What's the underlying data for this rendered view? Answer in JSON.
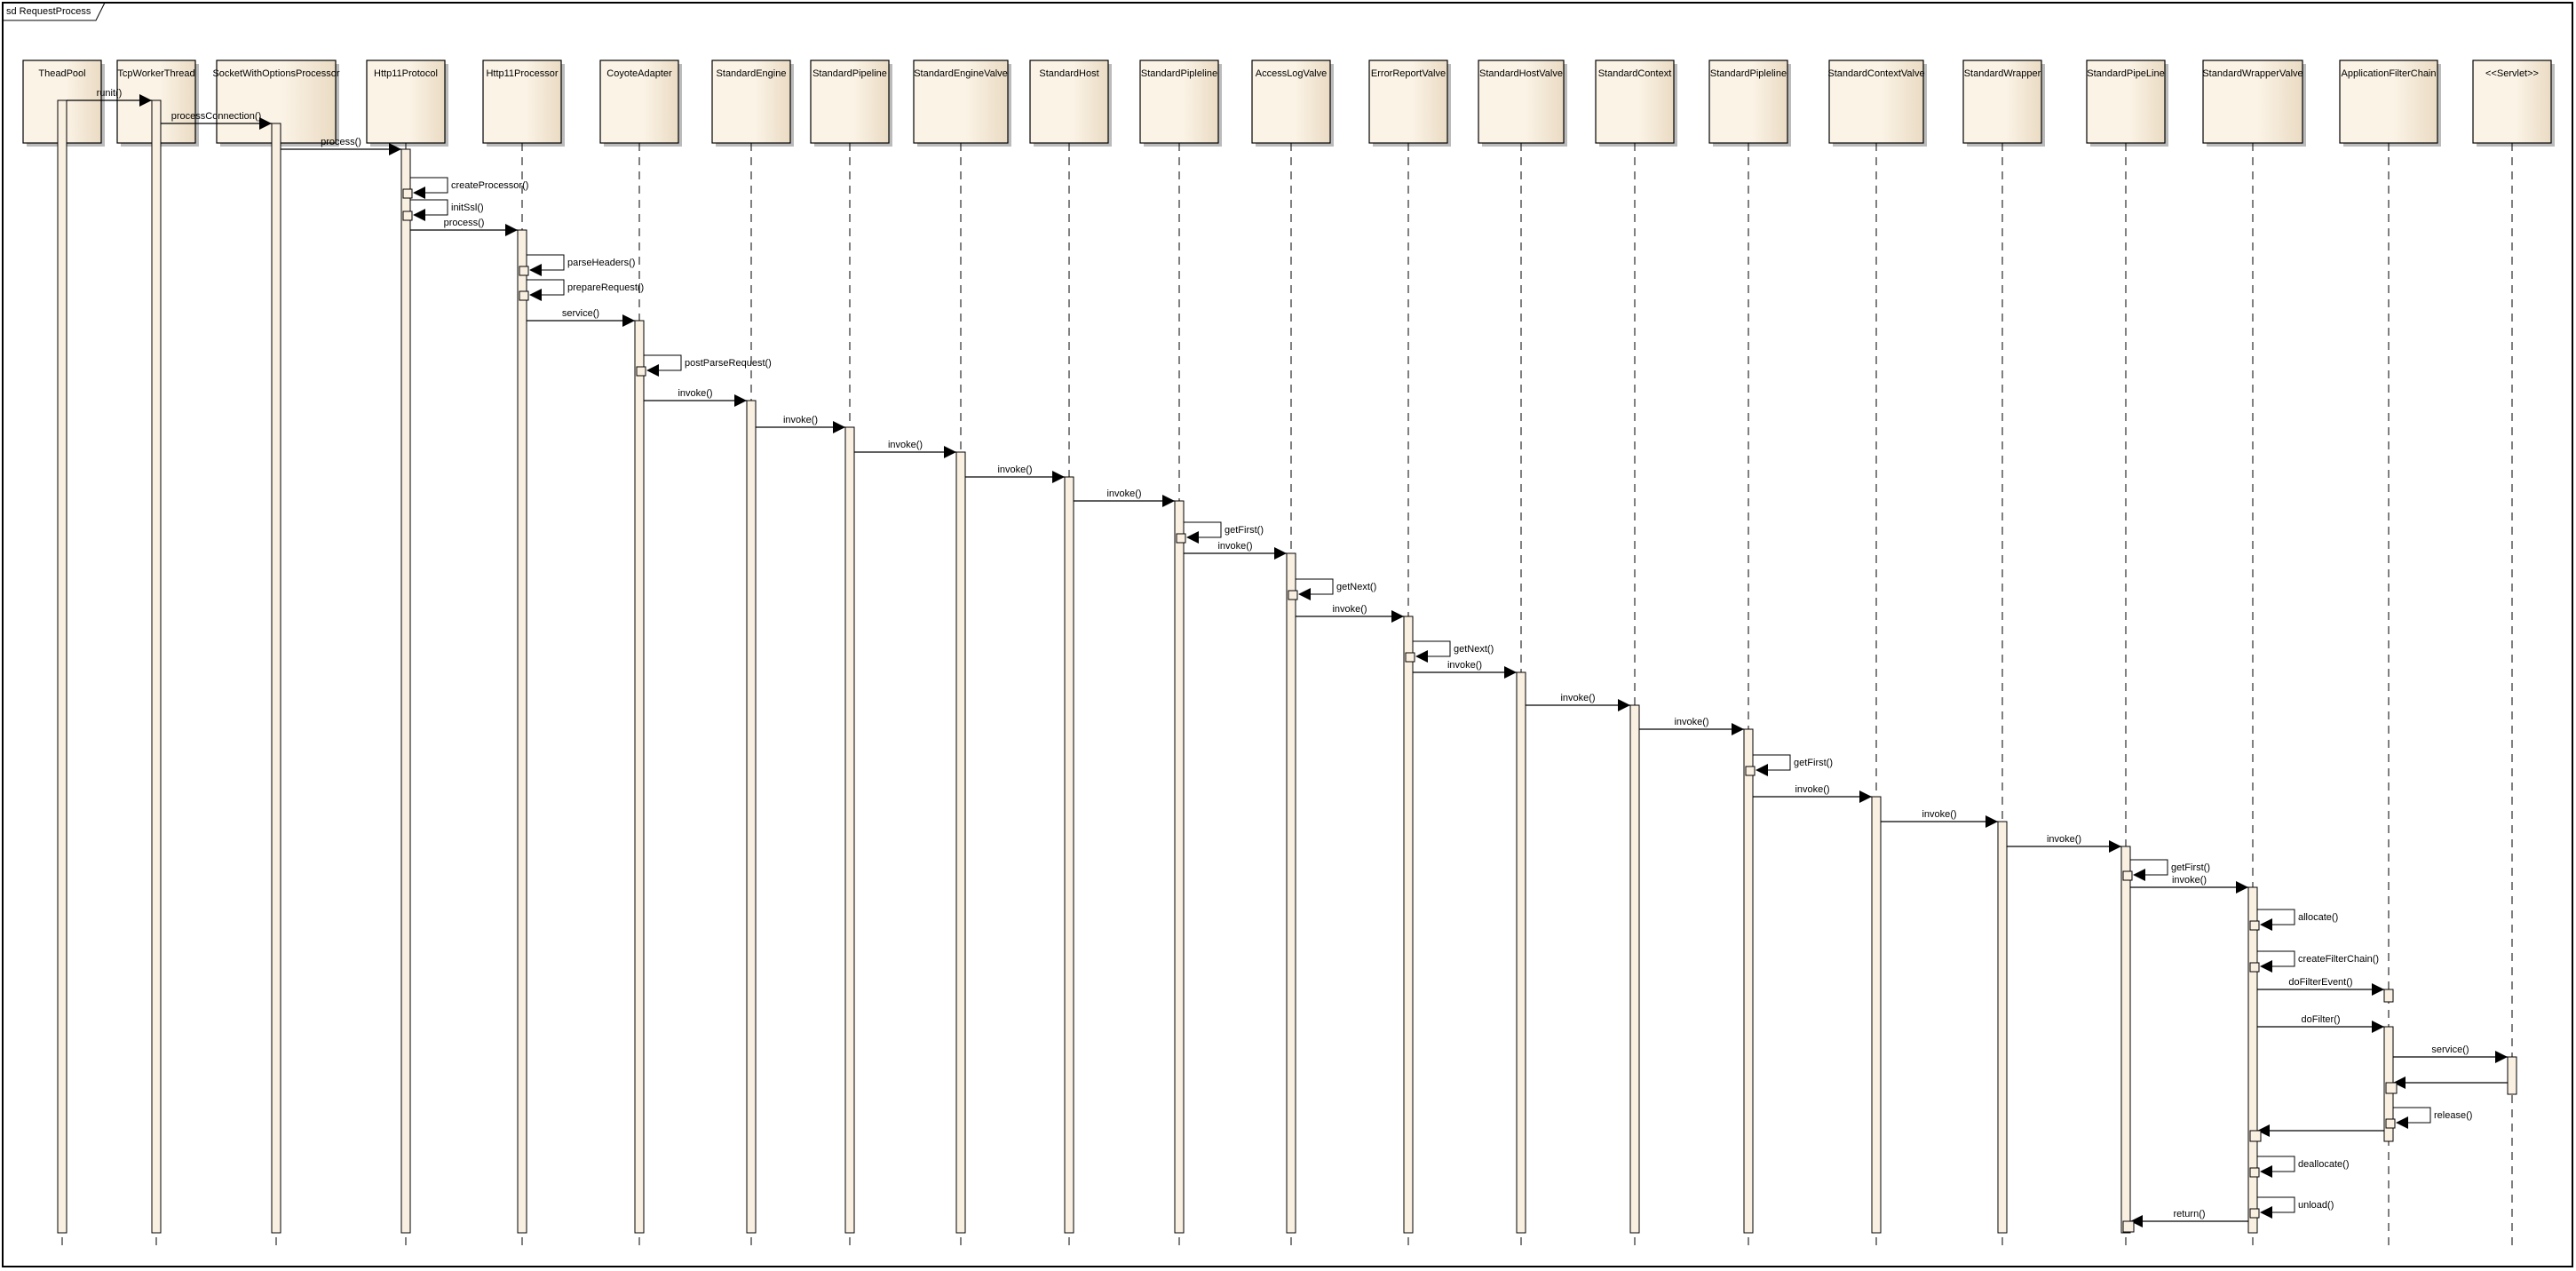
{
  "frame": {
    "title": "sd RequestProcess"
  },
  "participants": [
    "TheadPool",
    "TcpWorkerThread",
    "SocketWithOptionsProcessor",
    "Http11Protocol",
    "Http11Processor",
    "CoyoteAdapter",
    "StandardEngine",
    "StandardPipeline",
    "StandardEngineValve",
    "StandardHost",
    "StandardPipleline",
    "AccessLogValve",
    "ErrorReportValve",
    "StandardHostValve",
    "StandardContext",
    "StandardPipleline",
    "StandardContextValve",
    "StandardWrapper",
    "StandardPipeLine",
    "StandardWrapperValve",
    "ApplicationFilterChain",
    "<<Servlet>>"
  ],
  "messages": [
    {
      "from": 0,
      "to": 1,
      "label": "runit()",
      "kind": "call"
    },
    {
      "from": 1,
      "to": 2,
      "label": "processConnection()",
      "kind": "call"
    },
    {
      "from": 2,
      "to": 3,
      "label": "process()",
      "kind": "call"
    },
    {
      "from": 3,
      "to": 3,
      "label": "createProcessor()",
      "kind": "self"
    },
    {
      "from": 3,
      "to": 3,
      "label": "initSsl()",
      "kind": "self"
    },
    {
      "from": 3,
      "to": 4,
      "label": "process()",
      "kind": "call"
    },
    {
      "from": 4,
      "to": 4,
      "label": "parseHeaders()",
      "kind": "self"
    },
    {
      "from": 4,
      "to": 4,
      "label": "prepareRequest()",
      "kind": "self"
    },
    {
      "from": 4,
      "to": 5,
      "label": "service()",
      "kind": "call"
    },
    {
      "from": 5,
      "to": 5,
      "label": "postParseRequest()",
      "kind": "self"
    },
    {
      "from": 5,
      "to": 6,
      "label": "invoke()",
      "kind": "call"
    },
    {
      "from": 6,
      "to": 7,
      "label": "invoke()",
      "kind": "call"
    },
    {
      "from": 7,
      "to": 8,
      "label": "invoke()",
      "kind": "call"
    },
    {
      "from": 8,
      "to": 9,
      "label": "invoke()",
      "kind": "call"
    },
    {
      "from": 9,
      "to": 10,
      "label": "invoke()",
      "kind": "call"
    },
    {
      "from": 10,
      "to": 10,
      "label": "getFirst()",
      "kind": "self"
    },
    {
      "from": 10,
      "to": 11,
      "label": "invoke()",
      "kind": "call"
    },
    {
      "from": 11,
      "to": 11,
      "label": "getNext()",
      "kind": "self"
    },
    {
      "from": 11,
      "to": 12,
      "label": "invoke()",
      "kind": "call"
    },
    {
      "from": 12,
      "to": 12,
      "label": "getNext()",
      "kind": "self"
    },
    {
      "from": 12,
      "to": 13,
      "label": "invoke()",
      "kind": "call"
    },
    {
      "from": 13,
      "to": 14,
      "label": "invoke()",
      "kind": "call"
    },
    {
      "from": 14,
      "to": 15,
      "label": "invoke()",
      "kind": "call"
    },
    {
      "from": 15,
      "to": 15,
      "label": "getFirst()",
      "kind": "self"
    },
    {
      "from": 15,
      "to": 16,
      "label": "invoke()",
      "kind": "call"
    },
    {
      "from": 16,
      "to": 17,
      "label": "invoke()",
      "kind": "call"
    },
    {
      "from": 17,
      "to": 18,
      "label": "invoke()",
      "kind": "call"
    },
    {
      "from": 18,
      "to": 18,
      "label": "getFirst()",
      "kind": "self"
    },
    {
      "from": 18,
      "to": 19,
      "label": "invoke()",
      "kind": "call"
    },
    {
      "from": 19,
      "to": 19,
      "label": "allocate()",
      "kind": "self"
    },
    {
      "from": 19,
      "to": 19,
      "label": "createFilterChain()",
      "kind": "self"
    },
    {
      "from": 19,
      "to": 20,
      "label": "doFilterEvent()",
      "kind": "call"
    },
    {
      "from": 19,
      "to": 20,
      "label": "doFilter()",
      "kind": "call"
    },
    {
      "from": 20,
      "to": 21,
      "label": "service()",
      "kind": "call"
    },
    {
      "from": 21,
      "to": 20,
      "label": "",
      "kind": "return"
    },
    {
      "from": 20,
      "to": 20,
      "label": "release()",
      "kind": "self"
    },
    {
      "from": 20,
      "to": 19,
      "label": "",
      "kind": "return"
    },
    {
      "from": 19,
      "to": 19,
      "label": "deallocate()",
      "kind": "self"
    },
    {
      "from": 19,
      "to": 19,
      "label": "unload()",
      "kind": "self"
    },
    {
      "from": 19,
      "to": 18,
      "label": "return()",
      "kind": "return"
    }
  ],
  "colors": {
    "box_light": "#fbf3e6",
    "box_dark": "#eadbc3",
    "activation": "#faf0e2",
    "line": "#000000"
  }
}
